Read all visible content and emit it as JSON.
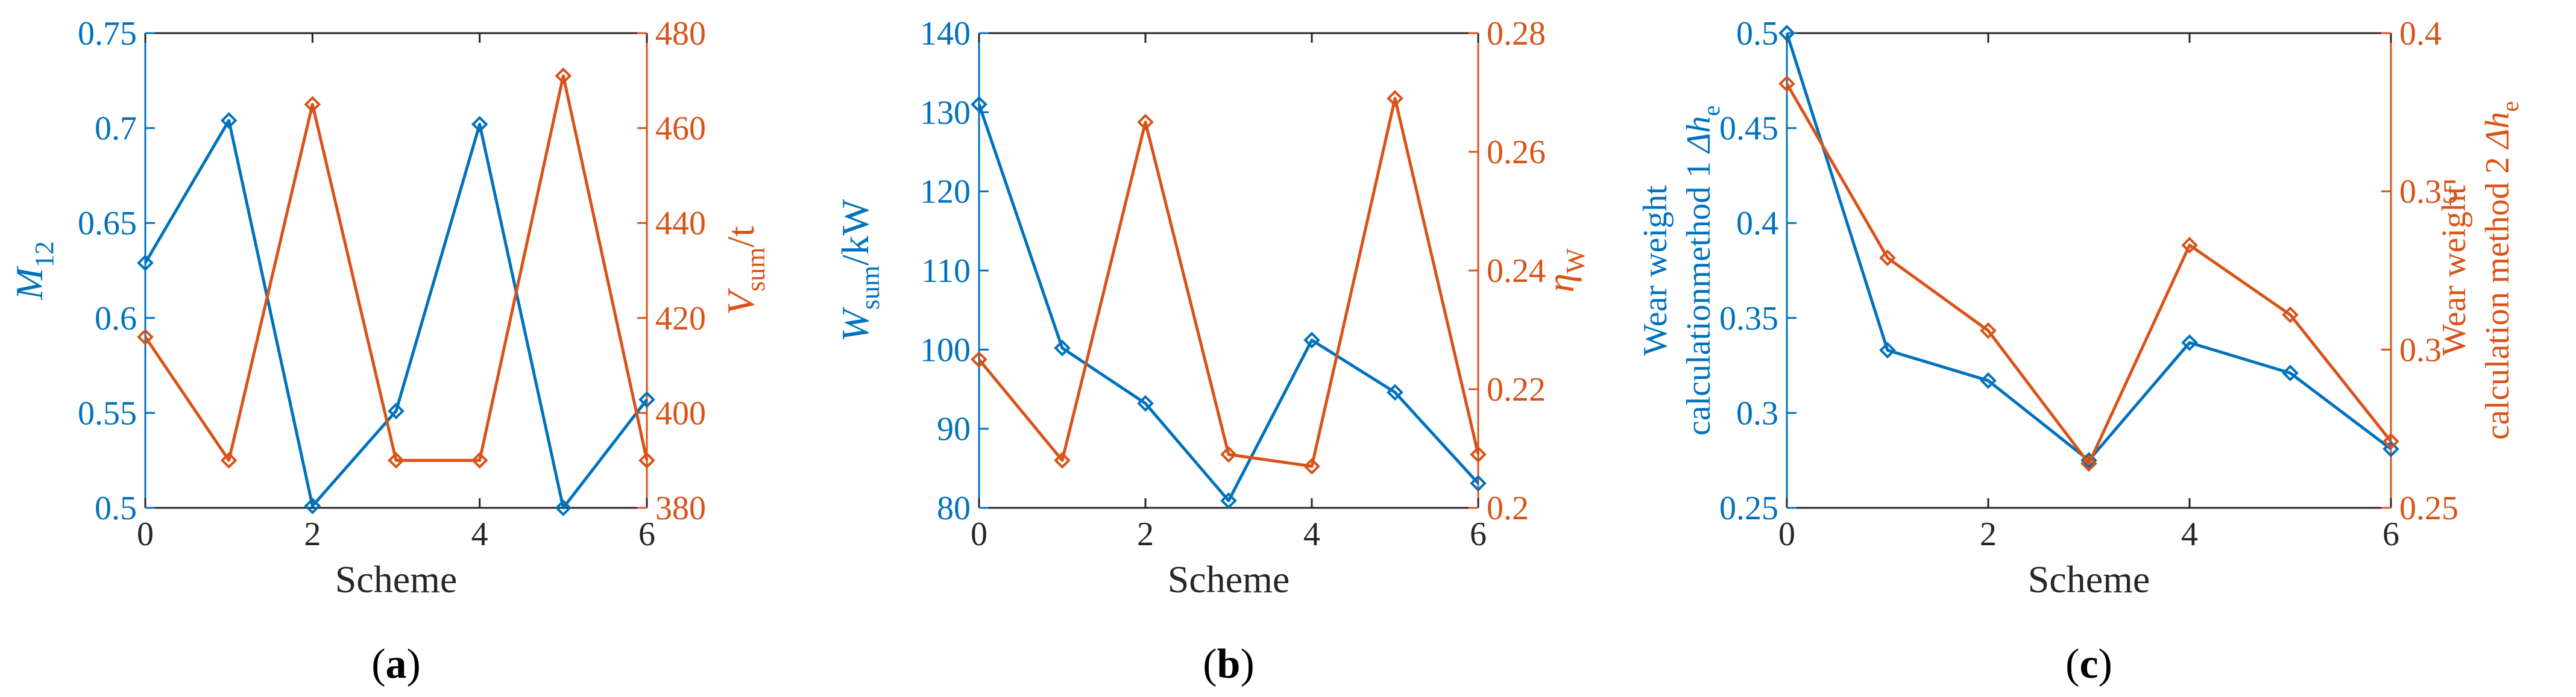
{
  "colors": {
    "left": "#0072BD",
    "right": "#D95319",
    "axis": "#262626"
  },
  "chart_data": [
    {
      "type": "line",
      "panel_label": "a",
      "xlabel": "Scheme",
      "ylabel_left": {
        "main": "M",
        "sub": "12"
      },
      "ylabel_right": {
        "main": "V",
        "sub": "sum",
        "suffix": "/t"
      },
      "x": [
        0,
        1,
        2,
        3,
        4,
        5,
        6
      ],
      "xlim": [
        0,
        6
      ],
      "xticks": [
        0,
        2,
        4,
        6
      ],
      "ylim_left": [
        0.5,
        0.75
      ],
      "yticks_left": [
        0.5,
        0.55,
        0.6,
        0.65,
        0.7,
        0.75
      ],
      "ytick_labels_left": [
        "0.5",
        "0.55",
        "0.6",
        "0.65",
        "0.7",
        "0.75"
      ],
      "ylim_right": [
        380,
        480
      ],
      "yticks_right": [
        380,
        400,
        420,
        440,
        460,
        480
      ],
      "ytick_labels_right": [
        "380",
        "400",
        "420",
        "440",
        "460",
        "480"
      ],
      "series": [
        {
          "name": "M12",
          "axis": "left",
          "values": [
            0.629,
            0.704,
            0.501,
            0.551,
            0.702,
            0.5,
            0.557
          ]
        },
        {
          "name": "Vsum",
          "axis": "right",
          "values": [
            416,
            390,
            465,
            390,
            390,
            471,
            390
          ]
        }
      ]
    },
    {
      "type": "line",
      "panel_label": "b",
      "xlabel": "Scheme",
      "ylabel_left": {
        "main": "W",
        "sub": "sum",
        "suffix": "/kW"
      },
      "ylabel_right": {
        "main": "η",
        "sub": "W"
      },
      "x": [
        0,
        1,
        2,
        3,
        4,
        5,
        6
      ],
      "xlim": [
        0,
        6
      ],
      "xticks": [
        0,
        2,
        4,
        6
      ],
      "ylim_left": [
        80,
        140
      ],
      "yticks_left": [
        80,
        90,
        100,
        110,
        120,
        130,
        140
      ],
      "ytick_labels_left": [
        "80",
        "90",
        "100",
        "110",
        "120",
        "130",
        "140"
      ],
      "ylim_right": [
        0.2,
        0.28
      ],
      "yticks_right": [
        0.2,
        0.22,
        0.24,
        0.26,
        0.28
      ],
      "ytick_labels_right": [
        "0.2",
        "0.22",
        "0.24",
        "0.26",
        "0.28"
      ],
      "series": [
        {
          "name": "Wsum",
          "axis": "left",
          "values": [
            131,
            100.2,
            93.2,
            80.9,
            101.2,
            94.6,
            83.1
          ]
        },
        {
          "name": "ηW",
          "axis": "right",
          "values": [
            0.225,
            0.208,
            0.265,
            0.209,
            0.207,
            0.269,
            0.209
          ]
        }
      ]
    },
    {
      "type": "line",
      "panel_label": "c",
      "xlabel": "Scheme",
      "ylabel_left": {
        "line1": "Wear weight",
        "line2": "calculationmethod 1 ",
        "main": "Δh",
        "sub": "e"
      },
      "ylabel_right": {
        "line1": "Wear weight",
        "line2": "calculation method 2 ",
        "main": "Δh",
        "sub": "e"
      },
      "x": [
        0,
        1,
        2,
        3,
        4,
        5,
        6
      ],
      "xlim": [
        0,
        6
      ],
      "xticks": [
        0,
        2,
        4,
        6
      ],
      "ylim_left": [
        0.25,
        0.5
      ],
      "yticks_left": [
        0.25,
        0.3,
        0.35,
        0.4,
        0.45,
        0.5
      ],
      "ytick_labels_left": [
        "0.25",
        "0.3",
        "0.35",
        "0.4",
        "0.45",
        "0.5"
      ],
      "ylim_right": [
        0.25,
        0.4
      ],
      "yticks_right": [
        0.25,
        0.3,
        0.35,
        0.4
      ],
      "ytick_labels_right": [
        "0.25",
        "0.3",
        "0.35",
        "0.4"
      ],
      "series": [
        {
          "name": "Method 1",
          "axis": "left",
          "values": [
            0.5,
            0.333,
            0.317,
            0.275,
            0.337,
            0.321,
            0.281
          ]
        },
        {
          "name": "Method 2",
          "axis": "right",
          "values": [
            0.384,
            0.329,
            0.306,
            0.264,
            0.333,
            0.311,
            0.271
          ]
        }
      ]
    }
  ]
}
